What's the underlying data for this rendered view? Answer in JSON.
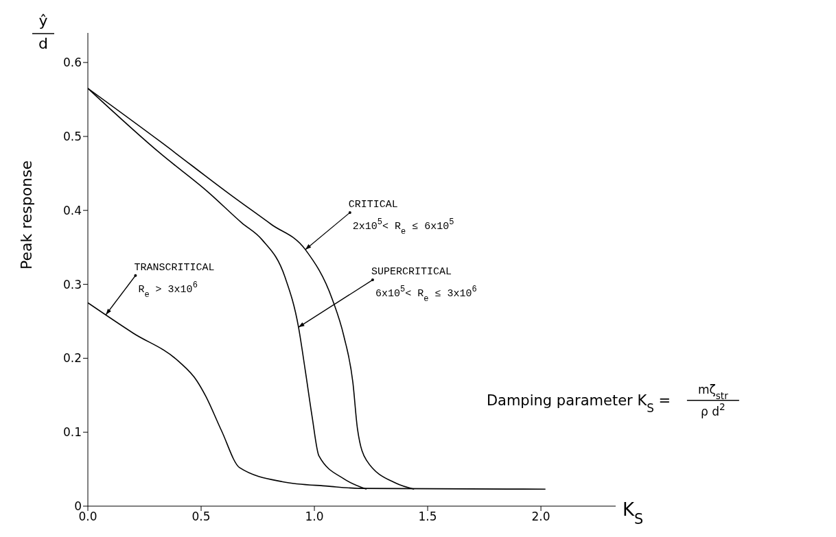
{
  "chart_data": {
    "type": "line",
    "xlabel": "K$_{S}$",
    "ylabel": "Peak response",
    "xlim": [
      0,
      2.33
    ],
    "ylim": [
      0,
      0.64
    ],
    "xticks": [
      {
        "value": 0,
        "label": "0.0"
      },
      0.5,
      {
        "value": 1,
        "label": "1.0"
      },
      1.5,
      {
        "value": 2,
        "label": "2.0"
      }
    ],
    "yticks": [
      0,
      0.1,
      0.2,
      0.3,
      0.4,
      0.5,
      0.6
    ],
    "series": [
      {
        "color": "#000000",
        "x": [
          0,
          0.32,
          0.63,
          0.81,
          0.96,
          1.08,
          1.13,
          1.17,
          1.19,
          1.23,
          1.36,
          1.44
        ],
        "values": [
          0.565,
          0.493,
          0.421,
          0.381,
          0.347,
          0.279,
          0.23,
          0.167,
          0.105,
          0.062,
          0.031,
          0.023
        ]
      },
      {
        "color": "#000000",
        "x": [
          0,
          0.32,
          0.53,
          0.68,
          0.77,
          0.87,
          0.93,
          0.96,
          0.99,
          1.02,
          1.13,
          1.23
        ],
        "values": [
          0.565,
          0.477,
          0.425,
          0.383,
          0.36,
          0.31,
          0.242,
          0.183,
          0.121,
          0.068,
          0.037,
          0.023
        ]
      },
      {
        "color": "#000000",
        "x": [
          0,
          0.2,
          0.4,
          0.48,
          0.52,
          0.59,
          0.67,
          0.86,
          1.06,
          1.2,
          2.02
        ],
        "values": [
          0.275,
          0.234,
          0.196,
          0.17,
          0.149,
          0.102,
          0.052,
          0.033,
          0.027,
          0.024,
          0.023
        ]
      }
    ],
    "annotations": [
      {
        "text": "TRANSCRITICAL\nR$_{e}$ > 3x10$^{6}$",
        "x": 0.08,
        "y": 0.259
      },
      {
        "text": "CRITICAL\n2x10$^{5}$< R$_{e}$ ≤ 6x10$^{5}$",
        "x": 0.96,
        "y": 0.347
      },
      {
        "text": "SUPERCRITICAL\n6x10$^{5}$< R$_{e}$ ≤ 3x10$^{6}$",
        "x": 0.93,
        "y": 0.242
      },
      "ŷ",
      "d",
      "Damping parameter K$_{S}$ =",
      "mζ$_{str}$",
      "ρ d$^{2}$"
    ]
  }
}
